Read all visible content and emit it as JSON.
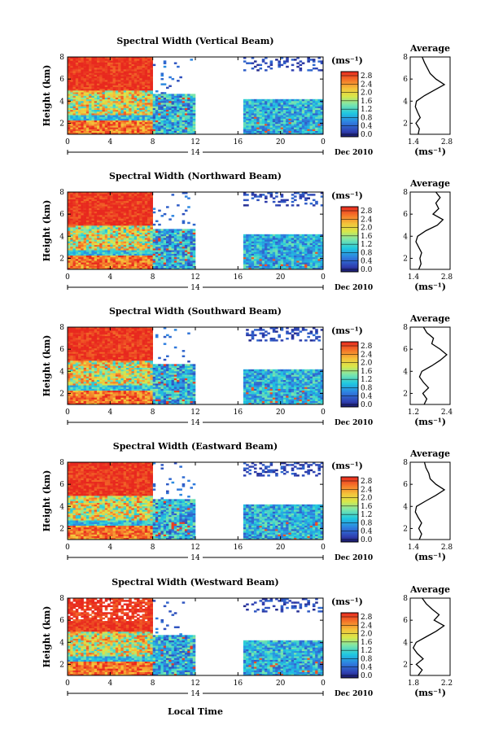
{
  "figure": {
    "xlabel": "Local Time",
    "date_label": "Dec 2010",
    "ylabel": "Height (km)",
    "colorbar_unit": "(ms⁻¹)",
    "colorbar_ticks": [
      "2.8",
      "2.4",
      "2.0",
      "1.6",
      "1.2",
      "0.8",
      "0.4",
      "0.0"
    ],
    "day_marker": "14",
    "x_ticks": [
      "0",
      "4",
      "8",
      "12",
      "16",
      "20",
      "0"
    ],
    "y_ticks": [
      "8",
      "6",
      "4",
      "2"
    ],
    "avg_title": "Average",
    "avg_xlabel": "(ms⁻¹)"
  },
  "chart_data": [
    {
      "type": "heatmap",
      "title": "Spectral Width (Vertical Beam)",
      "x_range": [
        0,
        24
      ],
      "y_range": [
        1,
        8
      ],
      "zlim": [
        0,
        2.8
      ],
      "data_gap_local_time": [
        12,
        16.5
      ],
      "average_profile": {
        "type": "line",
        "title": "Average",
        "xlim": [
          1.4,
          2.8
        ],
        "x_ticks": [
          "1.4",
          "2.8"
        ],
        "heights": [
          1.0,
          1.5,
          2.0,
          2.5,
          3.0,
          3.5,
          4.0,
          4.5,
          5.0,
          5.5,
          6.0,
          6.5,
          7.0,
          7.5,
          8.0
        ],
        "values": [
          1.68,
          1.72,
          1.6,
          1.75,
          1.66,
          1.58,
          1.62,
          1.9,
          2.25,
          2.6,
          2.3,
          2.1,
          2.0,
          1.9,
          1.82
        ]
      }
    },
    {
      "type": "heatmap",
      "title": "Spectral Width (Northward Beam)",
      "x_range": [
        0,
        24
      ],
      "y_range": [
        1,
        8
      ],
      "zlim": [
        0,
        2.8
      ],
      "data_gap_local_time": [
        12,
        16.5
      ],
      "average_profile": {
        "type": "line",
        "title": "Average",
        "xlim": [
          1.4,
          2.8
        ],
        "x_ticks": [
          "1.4",
          "2.8"
        ],
        "heights": [
          1.0,
          1.5,
          2.0,
          2.5,
          3.0,
          3.5,
          4.0,
          4.5,
          5.0,
          5.5,
          6.0,
          6.5,
          7.0,
          7.5,
          8.0
        ],
        "values": [
          1.7,
          1.78,
          1.74,
          1.8,
          1.7,
          1.6,
          1.66,
          1.95,
          2.35,
          2.55,
          2.2,
          2.4,
          2.3,
          2.45,
          2.3
        ]
      }
    },
    {
      "type": "heatmap",
      "title": "Spectral Width (Southward Beam)",
      "x_range": [
        0,
        24
      ],
      "y_range": [
        1,
        8
      ],
      "zlim": [
        0,
        2.8
      ],
      "data_gap_local_time": [
        12,
        16.5
      ],
      "average_profile": {
        "type": "line",
        "title": "Average",
        "xlim": [
          1.2,
          2.4
        ],
        "x_ticks": [
          "1.2",
          "2.4"
        ],
        "heights": [
          1.0,
          1.5,
          2.0,
          2.5,
          3.0,
          3.5,
          4.0,
          4.5,
          5.0,
          5.5,
          6.0,
          6.5,
          7.0,
          7.5,
          8.0
        ],
        "values": [
          1.62,
          1.7,
          1.58,
          1.75,
          1.6,
          1.48,
          1.55,
          1.85,
          2.1,
          2.3,
          2.1,
          1.85,
          1.9,
          1.7,
          1.6
        ]
      }
    },
    {
      "type": "heatmap",
      "title": "Spectral Width (Eastward Beam)",
      "x_range": [
        0,
        24
      ],
      "y_range": [
        1,
        8
      ],
      "zlim": [
        0,
        2.8
      ],
      "data_gap_local_time": [
        12,
        16.5
      ],
      "average_profile": {
        "type": "line",
        "title": "Average",
        "xlim": [
          1.4,
          2.8
        ],
        "x_ticks": [
          "1.4",
          "2.8"
        ],
        "heights": [
          1.0,
          1.5,
          2.0,
          2.5,
          3.0,
          3.5,
          4.0,
          4.5,
          5.0,
          5.5,
          6.0,
          6.5,
          7.0,
          7.5,
          8.0
        ],
        "values": [
          1.72,
          1.8,
          1.7,
          1.8,
          1.68,
          1.58,
          1.62,
          1.95,
          2.3,
          2.6,
          2.3,
          2.1,
          2.05,
          1.95,
          1.9
        ]
      }
    },
    {
      "type": "heatmap",
      "title": "Spectral Width (Westward Beam)",
      "x_range": [
        0,
        24
      ],
      "y_range": [
        1,
        8
      ],
      "zlim": [
        0,
        2.8
      ],
      "data_gap_local_time": [
        12,
        16.5
      ],
      "average_profile": {
        "type": "line",
        "title": "Average",
        "xlim": [
          1.8,
          2.2
        ],
        "x_ticks": [
          "1.8",
          "2.2"
        ],
        "heights": [
          1.0,
          1.5,
          2.0,
          2.5,
          3.0,
          3.5,
          4.0,
          4.5,
          5.0,
          5.5,
          6.0,
          6.5,
          7.0,
          7.5,
          8.0
        ],
        "values": [
          1.88,
          1.92,
          1.86,
          1.93,
          1.87,
          1.83,
          1.86,
          1.96,
          2.06,
          2.14,
          2.04,
          2.09,
          2.02,
          1.96,
          1.92
        ]
      }
    }
  ]
}
